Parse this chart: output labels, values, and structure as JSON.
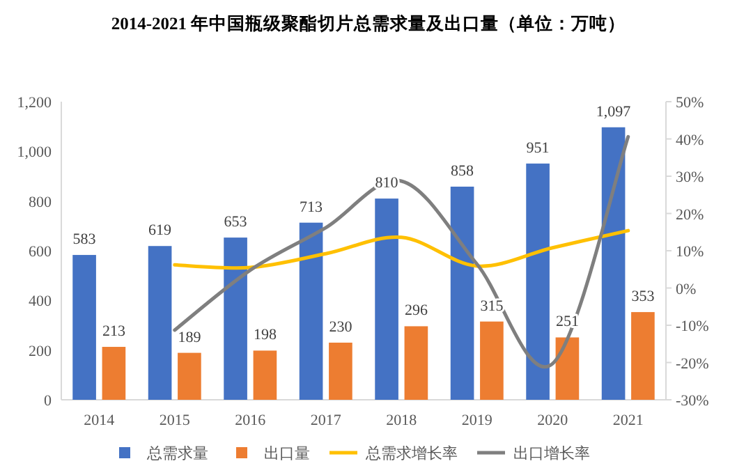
{
  "chart_data": {
    "type": "bar",
    "title": "2014-2021 年中国瓶级聚酯切片总需求量及出口量（单位：万吨）",
    "categories": [
      "2014",
      "2015",
      "2016",
      "2017",
      "2018",
      "2019",
      "2020",
      "2021"
    ],
    "series": [
      {
        "name": "总需求量",
        "color": "#4472c4",
        "values": [
          583,
          619,
          653,
          713,
          810,
          858,
          951,
          1097
        ],
        "value_labels": [
          "583",
          "619",
          "653",
          "713",
          "810",
          "858",
          "951",
          "1,097"
        ]
      },
      {
        "name": "出口量",
        "color": "#ed7d31",
        "values": [
          213,
          189,
          198,
          230,
          296,
          315,
          251,
          353
        ],
        "value_labels": [
          "213",
          "189",
          "198",
          "230",
          "296",
          "315",
          "251",
          "353"
        ]
      },
      {
        "name": "总需求增长率",
        "type": "line",
        "axis": "y2",
        "color": "#ffc000",
        "values": [
          null,
          6.2,
          5.5,
          9.2,
          13.6,
          5.9,
          10.8,
          15.4
        ]
      },
      {
        "name": "出口增长率",
        "type": "line",
        "axis": "y2",
        "color": "#7f7f7f",
        "values": [
          null,
          -11.3,
          4.8,
          16.2,
          28.7,
          6.4,
          -20.3,
          40.6
        ]
      }
    ],
    "ylim": [
      0,
      1200
    ],
    "yticks": [
      0,
      200,
      400,
      600,
      800,
      {
        "value": 1000,
        "label": "1,000"
      },
      {
        "value": 1200,
        "label": "1,200"
      }
    ],
    "y2lim": [
      -30,
      50
    ],
    "y2ticks": [
      {
        "value": -30,
        "label": "-30%"
      },
      {
        "value": -20,
        "label": "-20%"
      },
      {
        "value": -10,
        "label": "-10%"
      },
      {
        "value": 0,
        "label": "0%"
      },
      {
        "value": 10,
        "label": "10%"
      },
      {
        "value": 20,
        "label": "20%"
      },
      {
        "value": 30,
        "label": "30%"
      },
      {
        "value": 40,
        "label": "40%"
      },
      {
        "value": 50,
        "label": "50%"
      }
    ],
    "grid": false,
    "legend": "bottom",
    "marker": "none",
    "line_style": "solid"
  }
}
